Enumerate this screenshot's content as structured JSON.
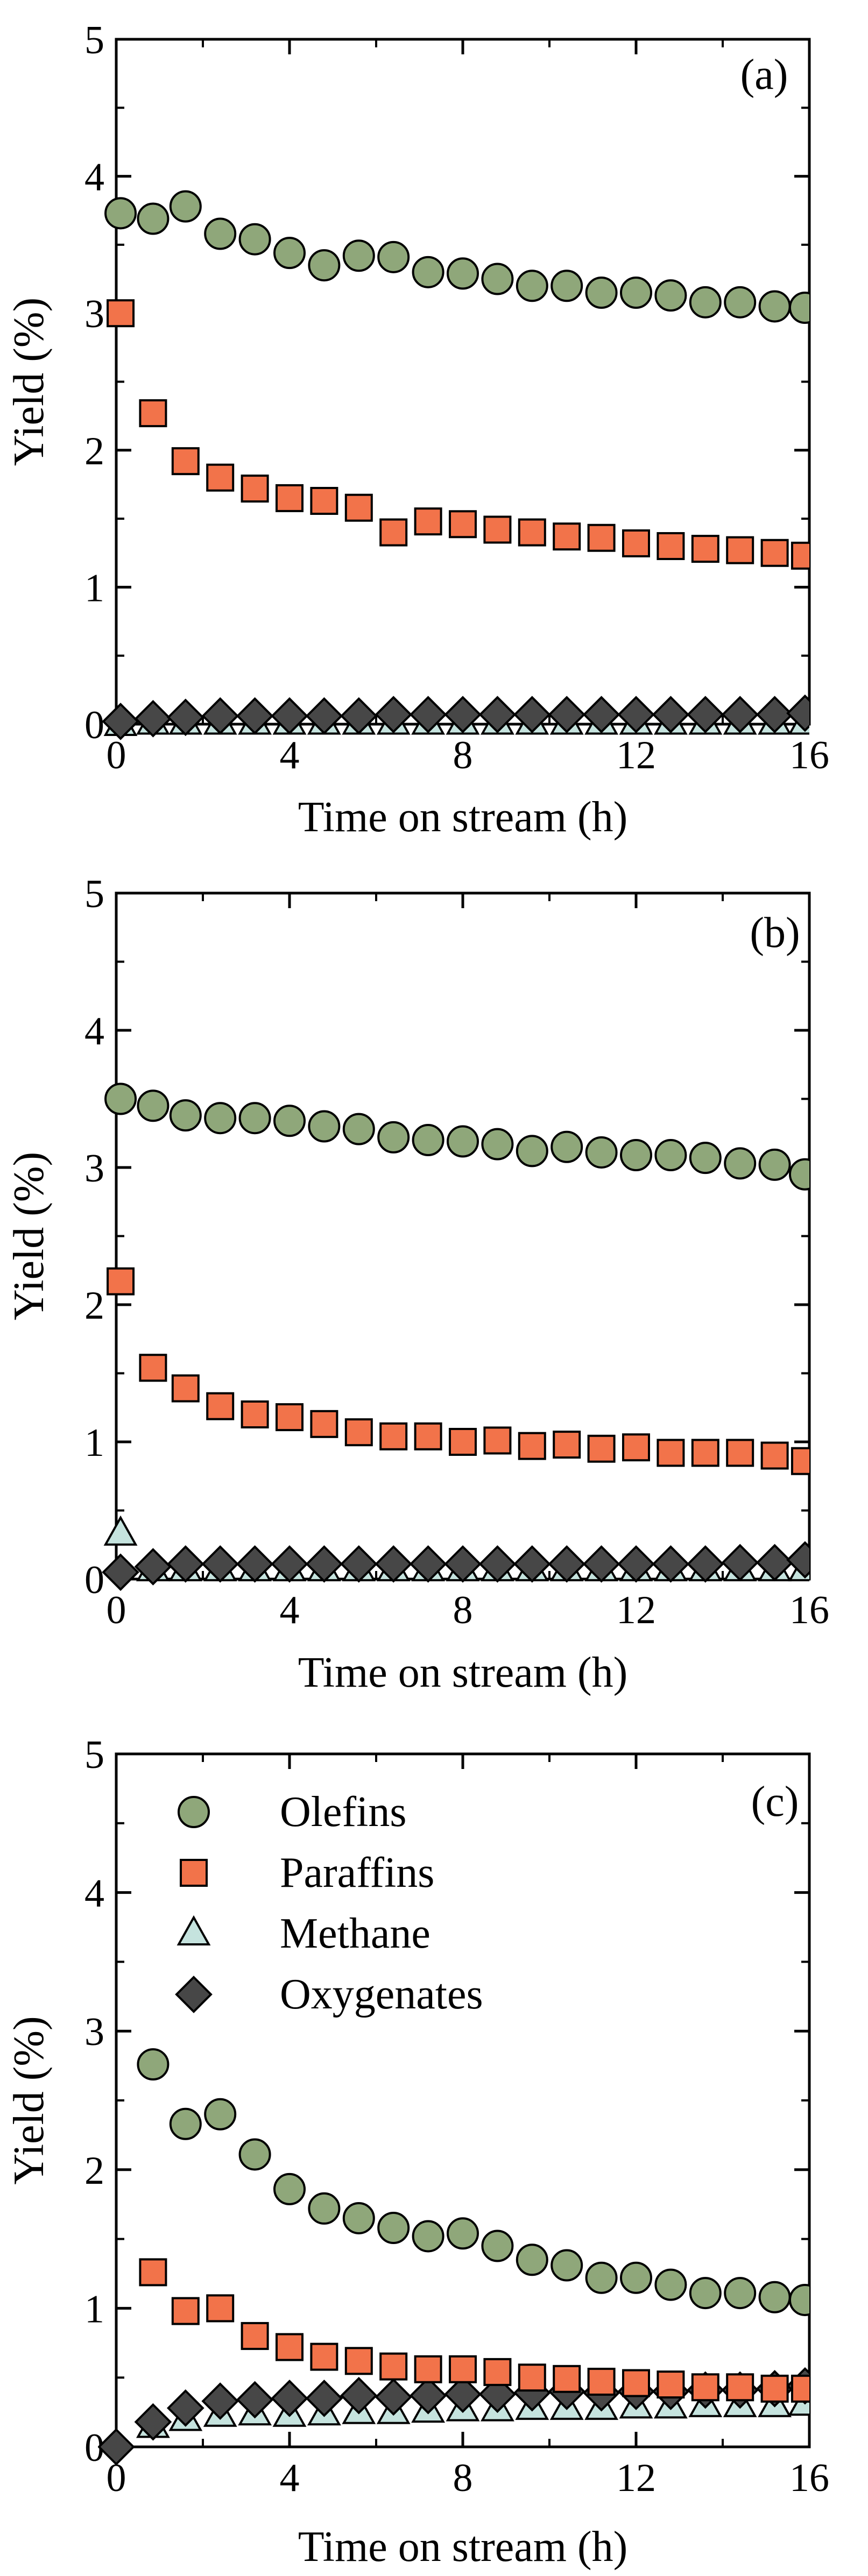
{
  "colors": {
    "olefins": "#8fa77a",
    "paraffins": "#f2734a",
    "methane": "#c5e3de",
    "oxygenates": "#474747",
    "stroke": "#000000"
  },
  "chart_data": [
    {
      "type": "scatter",
      "panel_label": "(a)",
      "xlabel": "Time on stream (h)",
      "ylabel": "Yield (%)",
      "xlim": [
        0,
        16
      ],
      "ylim": [
        0,
        5
      ],
      "xticks": [
        "0",
        "4",
        "8",
        "12",
        "16"
      ],
      "yticks": [
        "0",
        "1",
        "2",
        "3",
        "4",
        "5"
      ],
      "legend": null,
      "series": [
        {
          "name": "Olefins",
          "marker": "circle",
          "x": [
            0.1,
            0.85,
            1.6,
            2.4,
            3.2,
            4.0,
            4.8,
            5.6,
            6.4,
            7.2,
            8.0,
            8.8,
            9.6,
            10.4,
            11.2,
            12.0,
            12.8,
            13.6,
            14.4,
            15.2,
            15.9
          ],
          "y": [
            3.73,
            3.69,
            3.78,
            3.58,
            3.54,
            3.44,
            3.35,
            3.42,
            3.41,
            3.3,
            3.29,
            3.25,
            3.2,
            3.2,
            3.15,
            3.15,
            3.13,
            3.08,
            3.08,
            3.05,
            3.04
          ]
        },
        {
          "name": "Paraffins",
          "marker": "square",
          "x": [
            0.1,
            0.85,
            1.6,
            2.4,
            3.2,
            4.0,
            4.8,
            5.6,
            6.4,
            7.2,
            8.0,
            8.8,
            9.6,
            10.4,
            11.2,
            12.0,
            12.8,
            13.6,
            14.4,
            15.2,
            15.9
          ],
          "y": [
            3.0,
            2.27,
            1.92,
            1.8,
            1.72,
            1.65,
            1.63,
            1.58,
            1.4,
            1.48,
            1.46,
            1.42,
            1.4,
            1.37,
            1.36,
            1.32,
            1.3,
            1.28,
            1.27,
            1.25,
            1.23
          ]
        },
        {
          "name": "Methane",
          "marker": "triangle",
          "x": [
            0.1,
            0.85,
            1.6,
            2.4,
            3.2,
            4.0,
            4.8,
            5.6,
            6.4,
            7.2,
            8.0,
            8.8,
            9.6,
            10.4,
            11.2,
            12.0,
            12.8,
            13.6,
            14.4,
            15.2,
            15.9
          ],
          "y": [
            0.0,
            0.01,
            0.01,
            0.01,
            0.01,
            0.01,
            0.01,
            0.01,
            0.01,
            0.01,
            0.01,
            0.01,
            0.01,
            0.01,
            0.01,
            0.01,
            0.01,
            0.01,
            0.01,
            0.01,
            0.01
          ]
        },
        {
          "name": "Oxygenates",
          "marker": "diamond",
          "x": [
            0.1,
            0.85,
            1.6,
            2.4,
            3.2,
            4.0,
            4.8,
            5.6,
            6.4,
            7.2,
            8.0,
            8.8,
            9.6,
            10.4,
            11.2,
            12.0,
            12.8,
            13.6,
            14.4,
            15.2,
            15.9
          ],
          "y": [
            0.02,
            0.04,
            0.05,
            0.06,
            0.06,
            0.06,
            0.06,
            0.06,
            0.07,
            0.07,
            0.07,
            0.07,
            0.07,
            0.07,
            0.07,
            0.07,
            0.07,
            0.07,
            0.07,
            0.07,
            0.08
          ]
        }
      ]
    },
    {
      "type": "scatter",
      "panel_label": "(b)",
      "xlabel": "Time on stream (h)",
      "ylabel": "Yield (%)",
      "xlim": [
        0,
        16
      ],
      "ylim": [
        0,
        5
      ],
      "xticks": [
        "0",
        "4",
        "8",
        "12",
        "16"
      ],
      "yticks": [
        "0",
        "1",
        "2",
        "3",
        "4",
        "5"
      ],
      "legend": null,
      "series": [
        {
          "name": "Olefins",
          "marker": "circle",
          "x": [
            0.1,
            0.85,
            1.6,
            2.4,
            3.2,
            4.0,
            4.8,
            5.6,
            6.4,
            7.2,
            8.0,
            8.8,
            9.6,
            10.4,
            11.2,
            12.0,
            12.8,
            13.6,
            14.4,
            15.2,
            15.9
          ],
          "y": [
            3.5,
            3.45,
            3.38,
            3.36,
            3.36,
            3.34,
            3.3,
            3.28,
            3.22,
            3.2,
            3.19,
            3.17,
            3.12,
            3.15,
            3.11,
            3.09,
            3.09,
            3.07,
            3.03,
            3.02,
            2.95
          ]
        },
        {
          "name": "Paraffins",
          "marker": "square",
          "x": [
            0.1,
            0.85,
            1.6,
            2.4,
            3.2,
            4.0,
            4.8,
            5.6,
            6.4,
            7.2,
            8.0,
            8.8,
            9.6,
            10.4,
            11.2,
            12.0,
            12.8,
            13.6,
            14.4,
            15.2,
            15.9
          ],
          "y": [
            2.17,
            1.54,
            1.39,
            1.26,
            1.2,
            1.18,
            1.13,
            1.07,
            1.04,
            1.04,
            1.0,
            1.01,
            0.97,
            0.98,
            0.95,
            0.96,
            0.92,
            0.92,
            0.92,
            0.9,
            0.86
          ]
        },
        {
          "name": "Methane",
          "marker": "triangle",
          "x": [
            0.1,
            0.85,
            1.6,
            2.4,
            3.2,
            4.0,
            4.8,
            5.6,
            6.4,
            7.2,
            8.0,
            8.8,
            9.6,
            10.4,
            11.2,
            12.0,
            12.8,
            13.6,
            14.4,
            15.2,
            15.9
          ],
          "y": [
            0.33,
            0.07,
            0.07,
            0.07,
            0.07,
            0.07,
            0.07,
            0.07,
            0.07,
            0.07,
            0.07,
            0.07,
            0.07,
            0.07,
            0.07,
            0.07,
            0.07,
            0.07,
            0.07,
            0.07,
            0.07
          ]
        },
        {
          "name": "Oxygenates",
          "marker": "diamond",
          "x": [
            0.1,
            0.85,
            1.6,
            2.4,
            3.2,
            4.0,
            4.8,
            5.6,
            6.4,
            7.2,
            8.0,
            8.8,
            9.6,
            10.4,
            11.2,
            12.0,
            12.8,
            13.6,
            14.4,
            15.2,
            15.9
          ],
          "y": [
            0.05,
            0.09,
            0.11,
            0.11,
            0.11,
            0.11,
            0.11,
            0.11,
            0.11,
            0.11,
            0.11,
            0.11,
            0.11,
            0.11,
            0.11,
            0.11,
            0.11,
            0.11,
            0.12,
            0.12,
            0.14
          ]
        }
      ]
    },
    {
      "type": "scatter",
      "panel_label": "(c)",
      "xlabel": "Time on stream (h)",
      "ylabel": "Yield (%)",
      "xlim": [
        0,
        16
      ],
      "ylim": [
        0,
        5
      ],
      "xticks": [
        "0",
        "4",
        "8",
        "12",
        "16"
      ],
      "yticks": [
        "0",
        "1",
        "2",
        "3",
        "4",
        "5"
      ],
      "legend": "top-left",
      "series": [
        {
          "name": "Olefins",
          "marker": "circle",
          "x": [
            0.85,
            1.6,
            2.4,
            3.2,
            4.0,
            4.8,
            5.6,
            6.4,
            7.2,
            8.0,
            8.8,
            9.6,
            10.4,
            11.2,
            12.0,
            12.8,
            13.6,
            14.4,
            15.2,
            15.9
          ],
          "y": [
            2.76,
            2.33,
            2.4,
            2.11,
            1.86,
            1.72,
            1.65,
            1.58,
            1.52,
            1.54,
            1.45,
            1.35,
            1.31,
            1.22,
            1.22,
            1.17,
            1.11,
            1.11,
            1.08,
            1.06
          ]
        },
        {
          "name": "Paraffins",
          "marker": "square",
          "x": [
            0.85,
            1.6,
            2.4,
            3.2,
            4.0,
            4.8,
            5.6,
            6.4,
            7.2,
            8.0,
            8.8,
            9.6,
            10.4,
            11.2,
            12.0,
            12.8,
            13.6,
            14.4,
            15.2,
            15.9
          ],
          "y": [
            1.26,
            0.98,
            1.0,
            0.8,
            0.72,
            0.65,
            0.62,
            0.58,
            0.56,
            0.56,
            0.54,
            0.5,
            0.49,
            0.47,
            0.46,
            0.45,
            0.43,
            0.43,
            0.42,
            0.42
          ]
        },
        {
          "name": "Methane",
          "marker": "triangle",
          "x": [
            0.85,
            1.6,
            2.4,
            3.2,
            4.0,
            4.8,
            5.6,
            6.4,
            7.2,
            8.0,
            8.8,
            9.6,
            10.4,
            11.2,
            12.0,
            12.8,
            13.6,
            14.4,
            15.2,
            15.9
          ],
          "y": [
            0.15,
            0.2,
            0.23,
            0.24,
            0.23,
            0.24,
            0.25,
            0.25,
            0.26,
            0.27,
            0.27,
            0.28,
            0.28,
            0.28,
            0.29,
            0.29,
            0.3,
            0.3,
            0.3,
            0.31
          ]
        },
        {
          "name": "Oxygenates",
          "marker": "diamond",
          "x": [
            0.0,
            0.85,
            1.6,
            2.4,
            3.2,
            4.0,
            4.8,
            5.6,
            6.4,
            7.2,
            8.0,
            8.8,
            9.6,
            10.4,
            11.2,
            12.0,
            12.8,
            13.6,
            14.4,
            15.2,
            15.9
          ],
          "y": [
            0.0,
            0.18,
            0.28,
            0.33,
            0.34,
            0.35,
            0.35,
            0.37,
            0.36,
            0.37,
            0.38,
            0.38,
            0.39,
            0.4,
            0.39,
            0.4,
            0.4,
            0.41,
            0.41,
            0.42,
            0.44
          ]
        }
      ]
    }
  ]
}
